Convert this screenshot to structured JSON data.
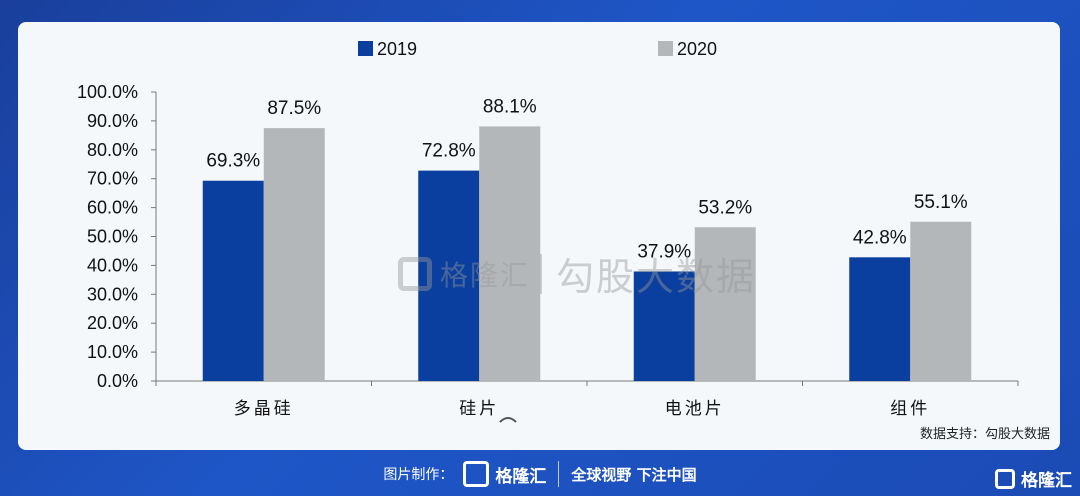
{
  "chart_data": {
    "type": "bar",
    "categories": [
      "多晶硅",
      "硅片",
      "电池片",
      "组件"
    ],
    "series": [
      {
        "name": "2019",
        "values": [
          69.3,
          72.8,
          37.9,
          42.8
        ],
        "labels": [
          "69.3%",
          "72.8%",
          "37.9%",
          "42.8%"
        ],
        "color": "#0a3f9f"
      },
      {
        "name": "2020",
        "values": [
          87.5,
          88.1,
          53.2,
          55.1
        ],
        "labels": [
          "87.5%",
          "88.1%",
          "53.2%",
          "55.1%"
        ],
        "color": "#b4b7b9"
      }
    ],
    "yticks": [
      "0.0%",
      "10.0%",
      "20.0%",
      "30.0%",
      "40.0%",
      "50.0%",
      "60.0%",
      "70.0%",
      "80.0%",
      "90.0%",
      "100.0%"
    ],
    "ylim": [
      0,
      100
    ],
    "legend_position": "top",
    "grid": false
  },
  "watermark": {
    "brand": "格隆汇",
    "text": "勾股大数据"
  },
  "source": "数据支持：勾股大数据",
  "footer": {
    "credit": "图片制作：",
    "brand": "格隆汇",
    "slogan": "全球视野 下注中国"
  },
  "corner_brand": "格隆汇"
}
